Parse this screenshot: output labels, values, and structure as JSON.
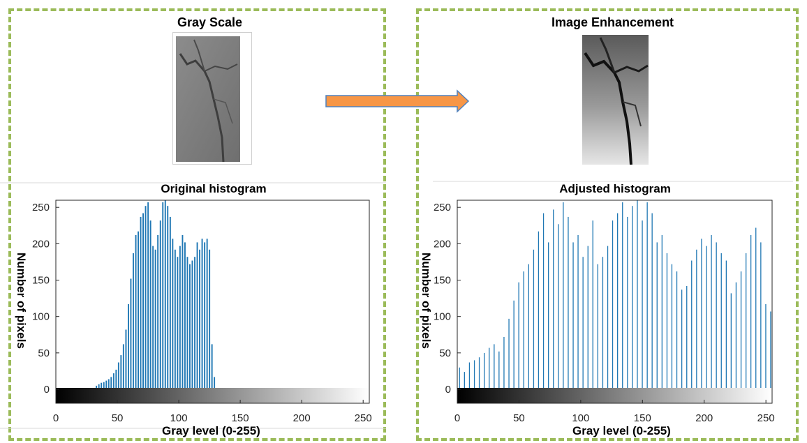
{
  "left_panel": {
    "image_title": "Gray Scale"
  },
  "right_panel": {
    "image_title": "Image Enhancement"
  },
  "arrow": {
    "color": "#f79646",
    "stroke": "#4f81bd"
  },
  "colors": {
    "frame": "#9bbb59",
    "bar": "#1f77b4"
  },
  "chart_data": [
    {
      "type": "bar",
      "title": "Original histogram",
      "xlabel": "Gray level (0-255)",
      "ylabel": "Number of pixels",
      "xlim": [
        0,
        255
      ],
      "ylim": [
        0,
        255
      ],
      "xticks": [
        0,
        50,
        100,
        150,
        200,
        250
      ],
      "yticks": [
        0,
        50,
        100,
        150,
        200,
        250
      ],
      "colorbar": "grayscale 0-255",
      "series": [
        {
          "x": [
            33,
            35,
            37,
            39,
            41,
            43,
            45,
            47,
            49,
            51,
            53,
            55,
            57,
            59,
            61,
            63,
            65,
            67,
            69,
            71,
            73,
            75,
            77,
            79,
            81,
            83,
            85,
            87,
            89,
            91,
            93,
            95,
            97,
            99,
            101,
            103,
            105,
            107,
            109,
            111,
            113,
            115,
            117,
            119,
            121,
            123,
            125,
            127,
            129
          ],
          "values": [
            3,
            5,
            7,
            8,
            10,
            12,
            15,
            20,
            25,
            35,
            45,
            60,
            80,
            115,
            150,
            185,
            210,
            215,
            235,
            240,
            250,
            255,
            230,
            195,
            190,
            210,
            230,
            255,
            260,
            250,
            235,
            205,
            190,
            180,
            195,
            210,
            200,
            180,
            170,
            175,
            180,
            200,
            190,
            205,
            200,
            205,
            190,
            60,
            15
          ]
        }
      ]
    },
    {
      "type": "bar",
      "title": "Adjusted histogram",
      "xlabel": "Gray level (0-255)",
      "ylabel": "Number of pixels",
      "xlim": [
        0,
        255
      ],
      "ylim": [
        0,
        255
      ],
      "xticks": [
        0,
        50,
        100,
        150,
        200,
        250
      ],
      "yticks": [
        0,
        50,
        100,
        150,
        200,
        250
      ],
      "colorbar": "grayscale 0-255",
      "series": [
        {
          "x": [
            2,
            6,
            10,
            14,
            18,
            22,
            26,
            30,
            34,
            38,
            42,
            46,
            50,
            54,
            58,
            62,
            66,
            70,
            74,
            78,
            82,
            86,
            90,
            94,
            98,
            102,
            106,
            110,
            114,
            118,
            122,
            126,
            130,
            134,
            138,
            142,
            146,
            150,
            154,
            158,
            162,
            166,
            170,
            174,
            178,
            182,
            186,
            190,
            194,
            198,
            202,
            206,
            210,
            214,
            218,
            222,
            226,
            230,
            234,
            238,
            242,
            246,
            250,
            254
          ],
          "values": [
            28,
            22,
            35,
            38,
            42,
            48,
            55,
            60,
            50,
            70,
            95,
            120,
            145,
            160,
            170,
            190,
            215,
            240,
            200,
            245,
            225,
            255,
            235,
            200,
            210,
            180,
            195,
            230,
            170,
            180,
            195,
            230,
            240,
            255,
            235,
            250,
            260,
            230,
            255,
            240,
            200,
            210,
            185,
            170,
            160,
            135,
            140,
            175,
            190,
            205,
            195,
            210,
            200,
            185,
            175,
            130,
            145,
            160,
            185,
            210,
            220,
            200,
            115,
            105
          ]
        }
      ]
    }
  ]
}
